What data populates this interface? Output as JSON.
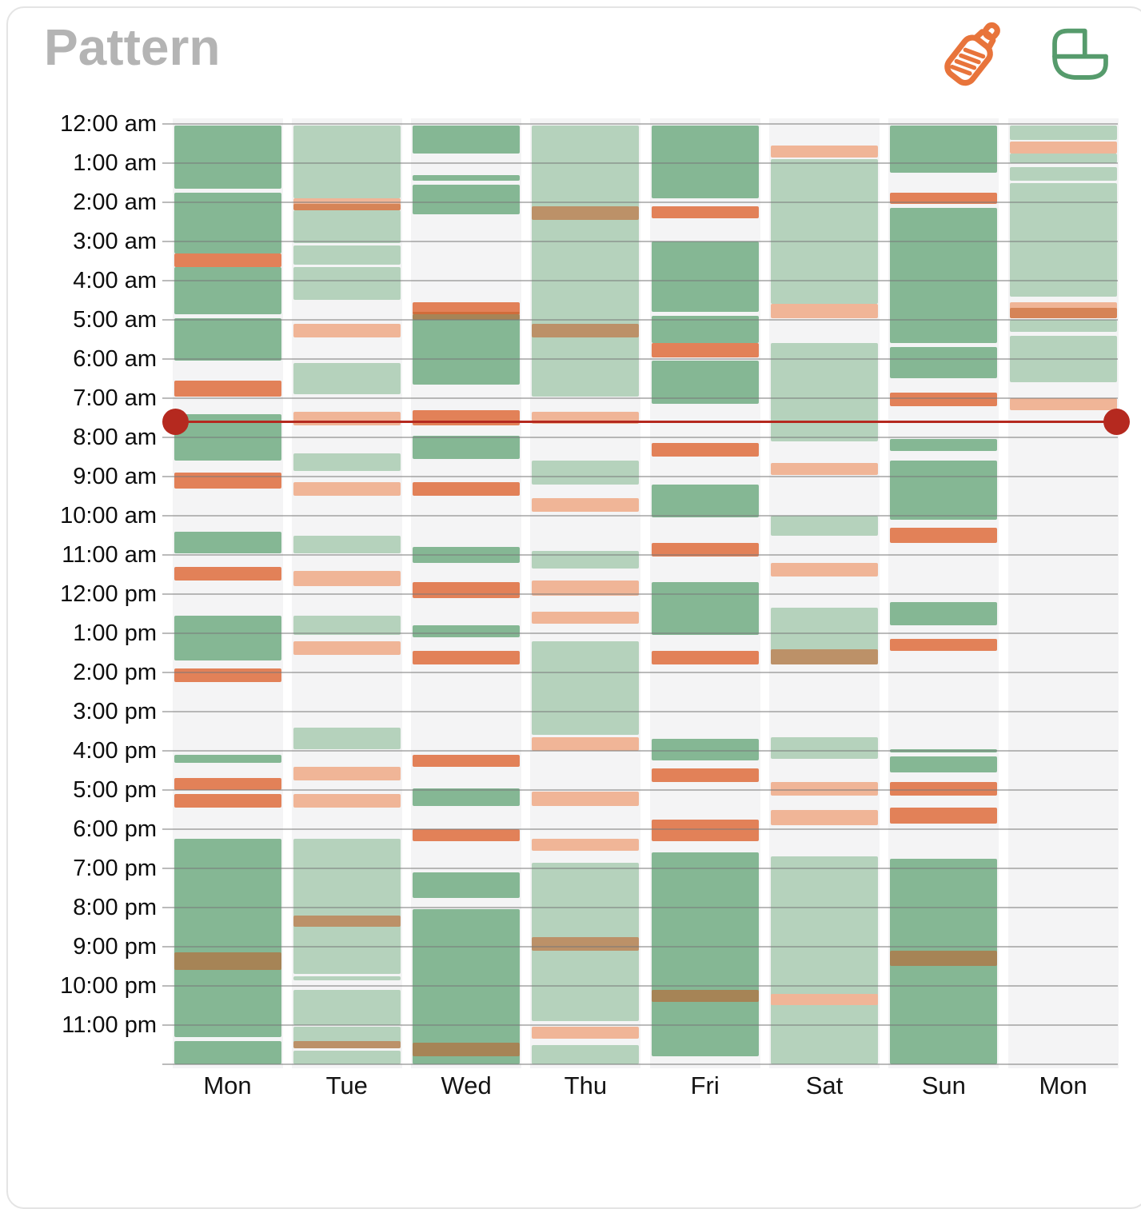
{
  "header": {
    "title": "Pattern",
    "icons": [
      {
        "name": "bottle-icon",
        "meaning": "feeding",
        "color": "#e8743b"
      },
      {
        "name": "cradle-icon",
        "meaning": "sleep",
        "color": "#569b6c"
      }
    ]
  },
  "colors": {
    "sleep-dark": "#85b794",
    "sleep-light": "#b5d2bc",
    "feed-dark": "#e28158",
    "feed-light": "#f0b597",
    "feed-overlap": "rgba(193,91,34,0.55)",
    "grid_line": "rgba(120,120,120,0.5)",
    "column_bg": "#f4f4f5",
    "now_line": "#b5291f",
    "title": "#b4b4b4"
  },
  "chart_data": {
    "type": "heatmap",
    "subtype": "weekly-day-pattern-timeline",
    "title": "Pattern",
    "x_labels": [
      "Mon",
      "Tue",
      "Wed",
      "Thu",
      "Fri",
      "Sat",
      "Sun",
      "Mon"
    ],
    "y_labels": [
      "12:00 am",
      "1:00 am",
      "2:00 am",
      "3:00 am",
      "4:00 am",
      "5:00 am",
      "6:00 am",
      "7:00 am",
      "8:00 am",
      "9:00 am",
      "10:00 am",
      "11:00 am",
      "12:00 pm",
      "1:00 pm",
      "2:00 pm",
      "3:00 pm",
      "4:00 pm",
      "5:00 pm",
      "6:00 pm",
      "7:00 pm",
      "8:00 pm",
      "9:00 pm",
      "10:00 pm",
      "11:00 pm"
    ],
    "hour_range": [
      0,
      24
    ],
    "grid": true,
    "legend": {
      "sleep": "green blocks",
      "feeding": "orange blocks"
    },
    "now_line": {
      "time_hours": 7.6,
      "color": "#b5291f"
    },
    "days": [
      {
        "label": "Mon",
        "blocks": [
          [
            0.05,
            1.65,
            "sleep-dark"
          ],
          [
            1.75,
            3.3,
            "sleep-dark"
          ],
          [
            3.3,
            3.65,
            "feed-dark"
          ],
          [
            3.65,
            4.85,
            "sleep-dark"
          ],
          [
            4.95,
            6.05,
            "sleep-dark"
          ],
          [
            6.55,
            6.95,
            "feed-dark"
          ],
          [
            7.4,
            8.6,
            "sleep-dark"
          ],
          [
            8.9,
            9.3,
            "feed-dark"
          ],
          [
            10.4,
            10.95,
            "sleep-dark"
          ],
          [
            11.3,
            11.65,
            "feed-dark"
          ],
          [
            12.55,
            13.7,
            "sleep-dark"
          ],
          [
            13.9,
            14.25,
            "feed-dark"
          ],
          [
            16.1,
            16.3,
            "sleep-dark"
          ],
          [
            16.7,
            17.0,
            "feed-dark"
          ],
          [
            17.1,
            17.45,
            "feed-dark"
          ],
          [
            18.25,
            23.3,
            "sleep-dark"
          ],
          [
            21.15,
            21.6,
            "feed-overlap"
          ],
          [
            23.4,
            24,
            "sleep-dark"
          ]
        ]
      },
      {
        "label": "Tue",
        "blocks": [
          [
            0.05,
            1.9,
            "sleep-light"
          ],
          [
            1.9,
            2.2,
            "feed-light"
          ],
          [
            2.05,
            2.2,
            "feed-overlap"
          ],
          [
            2.2,
            3.05,
            "sleep-light"
          ],
          [
            3.1,
            3.6,
            "sleep-light"
          ],
          [
            3.65,
            4.5,
            "sleep-light"
          ],
          [
            5.1,
            5.45,
            "feed-light"
          ],
          [
            6.1,
            6.9,
            "sleep-light"
          ],
          [
            7.35,
            7.7,
            "feed-light"
          ],
          [
            8.4,
            8.85,
            "sleep-light"
          ],
          [
            9.15,
            9.5,
            "feed-light"
          ],
          [
            10.5,
            10.95,
            "sleep-light"
          ],
          [
            11.4,
            11.8,
            "feed-light"
          ],
          [
            12.55,
            13.05,
            "sleep-light"
          ],
          [
            13.2,
            13.55,
            "feed-light"
          ],
          [
            15.4,
            15.95,
            "sleep-light"
          ],
          [
            16.4,
            16.75,
            "feed-light"
          ],
          [
            17.1,
            17.45,
            "feed-light"
          ],
          [
            18.25,
            21.7,
            "sleep-light"
          ],
          [
            20.2,
            20.5,
            "feed-overlap"
          ],
          [
            21.75,
            21.85,
            "sleep-light"
          ],
          [
            22.1,
            23.0,
            "sleep-light"
          ],
          [
            23.05,
            23.6,
            "sleep-light"
          ],
          [
            23.4,
            23.6,
            "feed-overlap"
          ],
          [
            23.65,
            24,
            "sleep-light"
          ]
        ]
      },
      {
        "label": "Wed",
        "blocks": [
          [
            0.05,
            0.75,
            "sleep-dark"
          ],
          [
            1.3,
            1.45,
            "sleep-dark"
          ],
          [
            1.55,
            2.3,
            "sleep-dark"
          ],
          [
            4.55,
            4.85,
            "feed-dark"
          ],
          [
            4.85,
            6.65,
            "sleep-dark"
          ],
          [
            4.8,
            5.0,
            "feed-overlap"
          ],
          [
            7.3,
            7.7,
            "feed-dark"
          ],
          [
            7.95,
            8.55,
            "sleep-dark"
          ],
          [
            9.15,
            9.5,
            "feed-dark"
          ],
          [
            10.8,
            11.2,
            "sleep-dark"
          ],
          [
            11.7,
            12.1,
            "feed-dark"
          ],
          [
            12.8,
            13.1,
            "sleep-dark"
          ],
          [
            13.45,
            13.8,
            "feed-dark"
          ],
          [
            16.1,
            16.4,
            "feed-dark"
          ],
          [
            16.95,
            17.4,
            "sleep-dark"
          ],
          [
            18.0,
            18.3,
            "feed-dark"
          ],
          [
            19.1,
            19.75,
            "sleep-dark"
          ],
          [
            20.05,
            24,
            "sleep-dark"
          ],
          [
            23.45,
            23.8,
            "feed-overlap"
          ]
        ]
      },
      {
        "label": "Thu",
        "blocks": [
          [
            0.05,
            6.95,
            "sleep-light"
          ],
          [
            2.1,
            2.45,
            "feed-overlap"
          ],
          [
            5.1,
            5.45,
            "feed-overlap"
          ],
          [
            7.35,
            7.65,
            "feed-light"
          ],
          [
            8.6,
            9.2,
            "sleep-light"
          ],
          [
            9.55,
            9.9,
            "feed-light"
          ],
          [
            10.9,
            11.35,
            "sleep-light"
          ],
          [
            11.65,
            12.05,
            "feed-light"
          ],
          [
            12.45,
            12.75,
            "feed-light"
          ],
          [
            13.2,
            15.6,
            "sleep-light"
          ],
          [
            15.65,
            16.0,
            "feed-light"
          ],
          [
            17.05,
            17.4,
            "feed-light"
          ],
          [
            18.25,
            18.55,
            "feed-light"
          ],
          [
            18.85,
            22.9,
            "sleep-light"
          ],
          [
            20.75,
            21.1,
            "feed-overlap"
          ],
          [
            23.05,
            23.35,
            "feed-light"
          ],
          [
            23.5,
            24,
            "sleep-light"
          ]
        ]
      },
      {
        "label": "Fri",
        "blocks": [
          [
            0.05,
            1.9,
            "sleep-dark"
          ],
          [
            2.1,
            2.4,
            "feed-dark"
          ],
          [
            3.0,
            4.8,
            "sleep-dark"
          ],
          [
            4.9,
            5.6,
            "sleep-dark"
          ],
          [
            5.6,
            5.95,
            "feed-dark"
          ],
          [
            6.05,
            7.15,
            "sleep-dark"
          ],
          [
            8.15,
            8.5,
            "feed-dark"
          ],
          [
            9.2,
            10.05,
            "sleep-dark"
          ],
          [
            10.7,
            11.05,
            "feed-dark"
          ],
          [
            11.7,
            13.05,
            "sleep-dark"
          ],
          [
            13.45,
            13.8,
            "feed-dark"
          ],
          [
            15.7,
            16.25,
            "sleep-dark"
          ],
          [
            16.45,
            16.8,
            "feed-dark"
          ],
          [
            17.75,
            18.3,
            "feed-dark"
          ],
          [
            18.6,
            23.8,
            "sleep-dark"
          ],
          [
            22.1,
            22.4,
            "feed-overlap"
          ]
        ]
      },
      {
        "label": "Sat",
        "blocks": [
          [
            0.55,
            0.85,
            "feed-light"
          ],
          [
            0.9,
            4.6,
            "sleep-light"
          ],
          [
            4.6,
            4.95,
            "feed-light"
          ],
          [
            5.6,
            8.1,
            "sleep-light"
          ],
          [
            8.65,
            8.95,
            "feed-light"
          ],
          [
            10.0,
            10.5,
            "sleep-light"
          ],
          [
            11.2,
            11.55,
            "feed-light"
          ],
          [
            12.35,
            13.8,
            "sleep-light"
          ],
          [
            13.4,
            13.8,
            "feed-overlap"
          ],
          [
            15.65,
            16.2,
            "sleep-light"
          ],
          [
            16.8,
            17.15,
            "feed-light"
          ],
          [
            17.5,
            17.9,
            "feed-light"
          ],
          [
            18.7,
            24,
            "sleep-light"
          ],
          [
            22.2,
            22.5,
            "feed-light"
          ]
        ]
      },
      {
        "label": "Sun",
        "blocks": [
          [
            0.05,
            1.25,
            "sleep-dark"
          ],
          [
            1.75,
            2.05,
            "feed-dark"
          ],
          [
            2.15,
            5.6,
            "sleep-dark"
          ],
          [
            5.7,
            6.5,
            "sleep-dark"
          ],
          [
            6.85,
            7.2,
            "feed-dark"
          ],
          [
            8.05,
            8.35,
            "sleep-dark"
          ],
          [
            8.6,
            10.1,
            "sleep-dark"
          ],
          [
            10.3,
            10.7,
            "feed-dark"
          ],
          [
            12.2,
            12.8,
            "sleep-dark"
          ],
          [
            13.15,
            13.45,
            "feed-dark"
          ],
          [
            15.95,
            16.05,
            "sleep-dark"
          ],
          [
            16.15,
            16.55,
            "sleep-dark"
          ],
          [
            16.8,
            17.15,
            "feed-dark"
          ],
          [
            17.45,
            17.85,
            "feed-dark"
          ],
          [
            18.75,
            24,
            "sleep-dark"
          ],
          [
            21.1,
            21.5,
            "feed-overlap"
          ]
        ]
      },
      {
        "label": "Mon",
        "blocks": [
          [
            0.05,
            0.4,
            "sleep-light"
          ],
          [
            0.45,
            0.75,
            "feed-light"
          ],
          [
            0.75,
            1.0,
            "sleep-light"
          ],
          [
            1.1,
            1.45,
            "sleep-light"
          ],
          [
            1.5,
            4.4,
            "sleep-light"
          ],
          [
            4.55,
            4.95,
            "feed-light"
          ],
          [
            4.7,
            4.95,
            "feed-overlap"
          ],
          [
            5.0,
            5.3,
            "sleep-light"
          ],
          [
            5.4,
            6.6,
            "sleep-light"
          ],
          [
            7.0,
            7.3,
            "feed-light"
          ]
        ]
      }
    ]
  }
}
